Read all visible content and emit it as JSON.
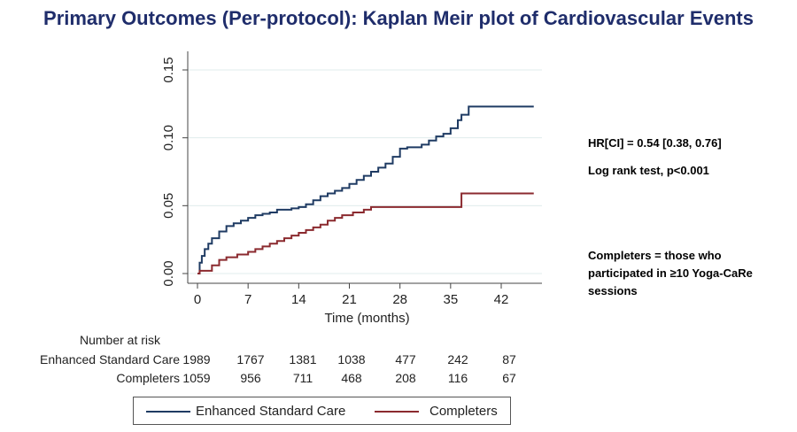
{
  "title": "Primary Outcomes (Per-protocol): Kaplan Meir plot of Cardiovascular Events",
  "annotations": {
    "hr": "HR[CI] = 0.54 [0.38, 0.76]",
    "logrank": "Log rank test, p<0.001",
    "completers_line1": "Completers = those who",
    "completers_line2": "participated in ≥10 Yoga-CaRe",
    "completers_line3": "sessions"
  },
  "risk_table": {
    "header": "Number at risk",
    "rows": [
      {
        "label": "Enhanced Standard Care",
        "values": [
          "1989",
          "1767",
          "1381",
          "1038",
          "477",
          "242",
          "87"
        ]
      },
      {
        "label": "Completers",
        "values": [
          "1059",
          "956",
          "711",
          "468",
          "208",
          "116",
          "67"
        ]
      }
    ]
  },
  "colors": {
    "enhanced": "#1f3b63",
    "completers": "#8b2a2f",
    "title": "#1f2d6b",
    "grid": "#e0ecec"
  },
  "chart_data": {
    "type": "line",
    "xlabel": "Time (months)",
    "ylabel": "",
    "xlim": [
      -1,
      47
    ],
    "ylim": [
      -0.005,
      0.162
    ],
    "xticks": [
      0,
      7,
      14,
      21,
      28,
      35,
      42
    ],
    "yticks": [
      0.0,
      0.05,
      0.1,
      0.15
    ],
    "ytick_labels": [
      "0.00",
      "0.05",
      "0.10",
      "0.15"
    ],
    "grid": true,
    "legend_position": "bottom",
    "series": [
      {
        "name": "Enhanced Standard Care",
        "step": true,
        "x": [
          0,
          0.3,
          0.6,
          1.0,
          1.5,
          2.0,
          3.0,
          4.0,
          5.0,
          6.0,
          7.0,
          8.0,
          9.0,
          10.0,
          11.0,
          12.0,
          13.0,
          14.0,
          15.0,
          16.0,
          17.0,
          18.0,
          19.0,
          20.0,
          21.0,
          22.0,
          23.0,
          24.0,
          25.0,
          26.0,
          27.0,
          28.0,
          29.0,
          30.0,
          31.0,
          32.0,
          33.0,
          34.0,
          35.0,
          36.0,
          36.5,
          37.5,
          46.5
        ],
        "y": [
          0.0,
          0.008,
          0.013,
          0.018,
          0.022,
          0.026,
          0.031,
          0.035,
          0.037,
          0.039,
          0.041,
          0.043,
          0.044,
          0.045,
          0.047,
          0.047,
          0.048,
          0.049,
          0.051,
          0.054,
          0.057,
          0.059,
          0.061,
          0.063,
          0.066,
          0.069,
          0.072,
          0.075,
          0.078,
          0.081,
          0.086,
          0.092,
          0.093,
          0.093,
          0.095,
          0.098,
          0.101,
          0.103,
          0.107,
          0.113,
          0.117,
          0.123,
          0.123
        ]
      },
      {
        "name": "Completers",
        "step": true,
        "x": [
          0,
          0.3,
          2.0,
          3.0,
          4.0,
          5.5,
          7.0,
          8.0,
          9.0,
          10.0,
          11.0,
          12.0,
          13.0,
          14.0,
          15.0,
          16.0,
          17.0,
          18.0,
          19.0,
          20.0,
          21.5,
          23.0,
          24.0,
          36.5,
          46.5
        ],
        "y": [
          0.0,
          0.002,
          0.006,
          0.01,
          0.012,
          0.014,
          0.016,
          0.018,
          0.02,
          0.022,
          0.024,
          0.026,
          0.028,
          0.03,
          0.032,
          0.034,
          0.036,
          0.039,
          0.041,
          0.043,
          0.045,
          0.047,
          0.049,
          0.059,
          0.059
        ]
      }
    ]
  }
}
